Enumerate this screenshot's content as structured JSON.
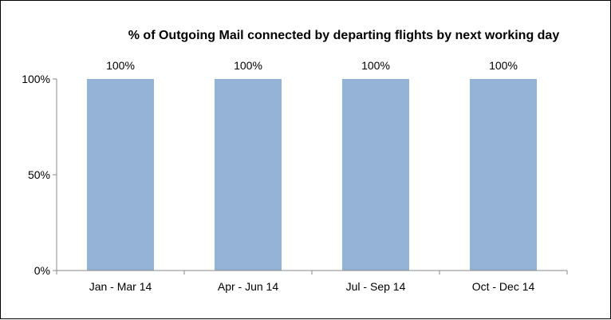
{
  "chart_data": {
    "type": "bar",
    "title": "% of Outgoing Mail connected by departing flights by next working day",
    "xlabel": "",
    "ylabel": "",
    "categories": [
      "Jan - Mar 14",
      "Apr - Jun 14",
      "Jul - Sep 14",
      "Oct - Dec 14"
    ],
    "values": [
      100,
      100,
      100,
      100
    ],
    "data_labels": [
      "100%",
      "100%",
      "100%",
      "100%"
    ],
    "ylim": [
      0,
      100
    ],
    "yticks": [
      0,
      50,
      100
    ],
    "ytick_labels": [
      "0%",
      "50%",
      "100%"
    ],
    "bar_color": "#95B3D7",
    "grid": false,
    "legend": "none"
  }
}
